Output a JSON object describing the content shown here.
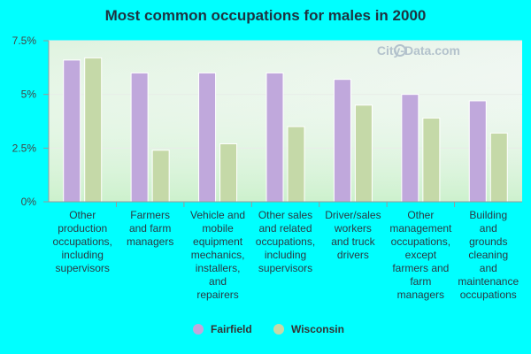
{
  "chart_data": {
    "type": "bar",
    "title": "Most common occupations for males in 2000",
    "categories": [
      [
        "Other",
        "production",
        "occupations,",
        "including",
        "supervisors"
      ],
      [
        "Farmers",
        "and farm",
        "managers"
      ],
      [
        "Vehicle and",
        "mobile",
        "equipment",
        "mechanics,",
        "installers,",
        "and",
        "repairers"
      ],
      [
        "Other sales",
        "and related",
        "occupations,",
        "including",
        "supervisors"
      ],
      [
        "Driver/sales",
        "workers",
        "and truck",
        "drivers"
      ],
      [
        "Other",
        "management",
        "occupations,",
        "except",
        "farmers and",
        "farm",
        "managers"
      ],
      [
        "Building",
        "and",
        "grounds",
        "cleaning",
        "and",
        "maintenance",
        "occupations"
      ]
    ],
    "series": [
      {
        "name": "Fairfield",
        "color": "#c0a8dc",
        "values": [
          6.6,
          6.0,
          6.0,
          6.0,
          5.7,
          5.0,
          4.7
        ]
      },
      {
        "name": "Wisconsin",
        "color": "#c5d9a8",
        "values": [
          6.7,
          2.4,
          2.7,
          3.5,
          4.5,
          3.9,
          3.2
        ]
      }
    ],
    "yticks": [
      "0%",
      "2.5%",
      "5%",
      "7.5%"
    ],
    "ylim": [
      0,
      7.5
    ],
    "legend_position": "bottom",
    "grid": true,
    "watermark": "City-Data.com"
  }
}
